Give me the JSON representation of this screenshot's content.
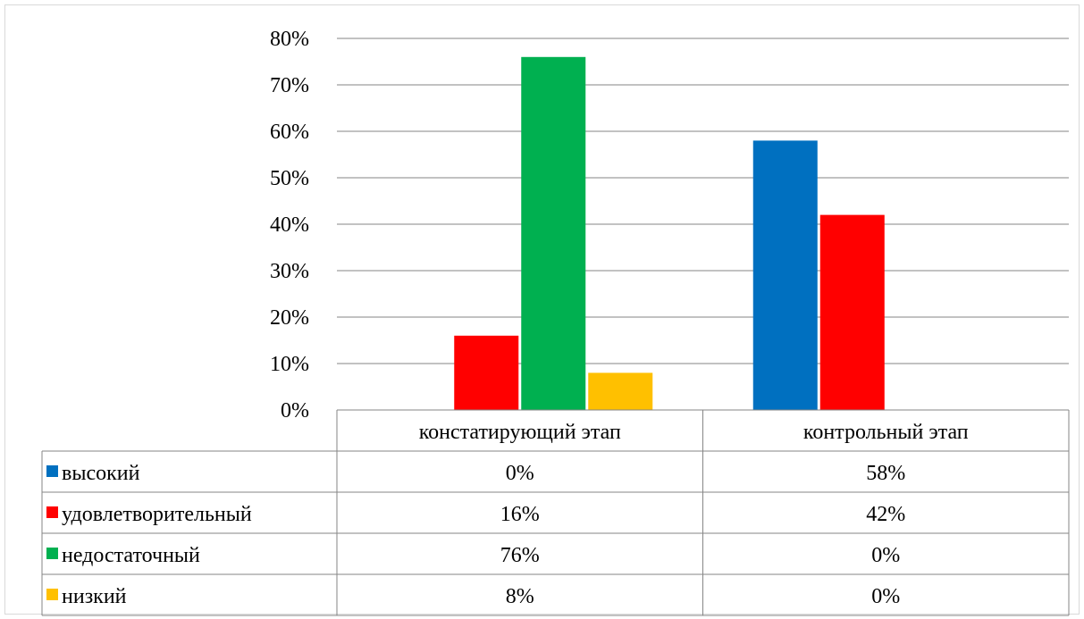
{
  "chart_data": {
    "type": "bar",
    "title": "",
    "xlabel": "",
    "ylabel": "",
    "categories": [
      "констатирующий этап",
      "контрольный этап"
    ],
    "ylim": [
      0,
      80
    ],
    "y_ticks": [
      "0%",
      "10%",
      "20%",
      "30%",
      "40%",
      "50%",
      "60%",
      "70%",
      "80%"
    ],
    "grid": true,
    "legend_placement": "data-table",
    "series": [
      {
        "name": "высокий",
        "color": "#0070c0",
        "values": [
          0,
          58
        ],
        "labels": [
          "0%",
          "58%"
        ]
      },
      {
        "name": "удовлетворительный",
        "color": "#ff0000",
        "values": [
          16,
          42
        ],
        "labels": [
          "16%",
          "42%"
        ]
      },
      {
        "name": "недостаточный",
        "color": "#00b050",
        "values": [
          76,
          0
        ],
        "labels": [
          "76%",
          "0%"
        ]
      },
      {
        "name": "низкий",
        "color": "#ffc000",
        "values": [
          8,
          0
        ],
        "labels": [
          "8%",
          "0%"
        ]
      }
    ]
  }
}
